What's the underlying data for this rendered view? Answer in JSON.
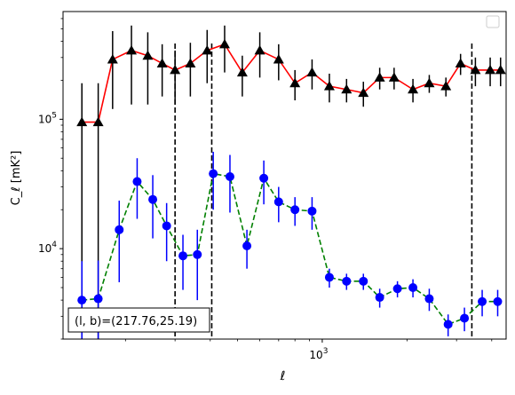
{
  "chart_data": {
    "type": "scatter",
    "xlabel": "ℓ",
    "ylabel": "C_ℓ  [mK²]",
    "xscale": "log",
    "yscale": "log",
    "xlim": [
      120,
      4500
    ],
    "ylim": [
      2000,
      680000
    ],
    "xticks": [
      {
        "value": 1000,
        "base": "10",
        "exp": "3"
      }
    ],
    "yticks": [
      {
        "value": 10000,
        "base": "10",
        "exp": "4"
      },
      {
        "value": 100000,
        "base": "10",
        "exp": "5"
      }
    ],
    "legend": {
      "location": "top-right",
      "entries": []
    },
    "annotation": {
      "text": "(l, b)=(217.76,25.19)",
      "location": "bottom-left"
    },
    "vlines": [
      300,
      405,
      3400
    ],
    "grid": false,
    "series": [
      {
        "color": "#ff0000",
        "marker": "triangle",
        "marker_color": "#000000",
        "linestyle": "solid",
        "x": [
          140,
          160,
          180,
          210,
          240,
          270,
          300,
          340,
          390,
          450,
          520,
          600,
          700,
          800,
          920,
          1060,
          1220,
          1400,
          1600,
          1800,
          2100,
          2400,
          2750,
          3100,
          3500,
          3950,
          4300
        ],
        "y": [
          95000,
          95000,
          290000,
          340000,
          310000,
          270000,
          240000,
          270000,
          340000,
          380000,
          230000,
          340000,
          290000,
          190000,
          230000,
          180000,
          170000,
          160000,
          210000,
          210000,
          170000,
          190000,
          180000,
          270000,
          240000,
          240000,
          240000
        ],
        "err_low": [
          93000,
          93000,
          170000,
          210000,
          180000,
          120000,
          110000,
          120000,
          150000,
          150000,
          80000,
          130000,
          90000,
          50000,
          60000,
          45000,
          35000,
          35000,
          40000,
          40000,
          35000,
          30000,
          30000,
          50000,
          60000,
          60000,
          60000
        ],
        "err_high": [
          95000,
          95000,
          190000,
          190000,
          160000,
          110000,
          100000,
          120000,
          150000,
          150000,
          80000,
          130000,
          90000,
          50000,
          60000,
          45000,
          35000,
          35000,
          40000,
          40000,
          35000,
          30000,
          30000,
          50000,
          60000,
          60000,
          60000
        ]
      },
      {
        "color": "#008000",
        "marker": "circle",
        "marker_color": "#0000ff",
        "linestyle": "dashed",
        "x": [
          140,
          160,
          190,
          220,
          250,
          280,
          320,
          360,
          410,
          470,
          540,
          620,
          700,
          800,
          920,
          1060,
          1220,
          1400,
          1600,
          1850,
          2100,
          2400,
          2800,
          3200,
          3700,
          4200
        ],
        "y": [
          4000,
          4100,
          14000,
          33000,
          24000,
          15000,
          8800,
          9000,
          38000,
          36000,
          10500,
          35000,
          23000,
          20000,
          19500,
          6000,
          5600,
          5600,
          4200,
          4900,
          5000,
          4100,
          2600,
          2900,
          3900,
          3900
        ],
        "err_low": [
          2000,
          2100,
          8500,
          16000,
          12000,
          7000,
          4000,
          5000,
          18000,
          17000,
          3500,
          13000,
          7000,
          5000,
          5500,
          1000,
          800,
          800,
          700,
          700,
          800,
          800,
          500,
          600,
          900,
          900
        ],
        "err_high": [
          4000,
          4000,
          9500,
          17000,
          13000,
          7500,
          4000,
          5000,
          18000,
          17000,
          3500,
          13000,
          7000,
          5000,
          5500,
          1000,
          800,
          800,
          700,
          700,
          800,
          800,
          500,
          600,
          900,
          900
        ]
      }
    ]
  }
}
